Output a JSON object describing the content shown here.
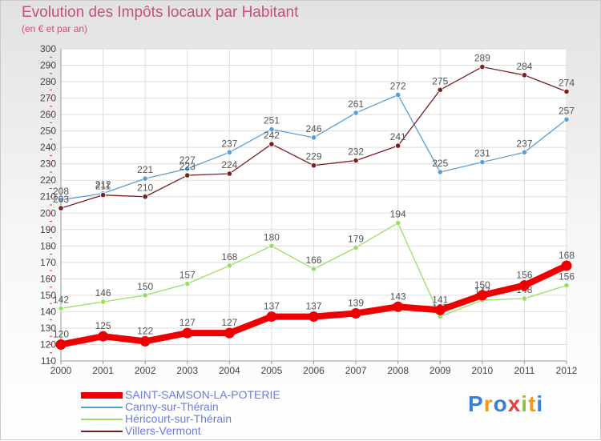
{
  "title": "Evolution des Impôts locaux par Habitant",
  "subtitle": "(en € et par an)",
  "logo_text": "Proxiti",
  "chart_data": {
    "type": "line",
    "title": "Evolution des Impôts locaux par Habitant",
    "subtitle": "(en € et par an)",
    "x": [
      2000,
      2001,
      2002,
      2003,
      2004,
      2005,
      2006,
      2007,
      2008,
      2009,
      2010,
      2011,
      2012
    ],
    "ylim": [
      110,
      300
    ],
    "yticks": [
      110,
      120,
      130,
      140,
      150,
      160,
      170,
      180,
      190,
      200,
      210,
      220,
      230,
      240,
      250,
      260,
      270,
      280,
      290,
      300
    ],
    "grid": true,
    "legend_position": "bottom-left",
    "series": [
      {
        "name": "SAINT-SAMSON-LA-POTERIE",
        "color": "#ee0000",
        "highlight": true,
        "values": [
          120,
          125,
          122,
          127,
          127,
          137,
          137,
          139,
          143,
          141,
          150,
          156,
          168
        ]
      },
      {
        "name": "Canny-sur-Thérain",
        "color": "#5a9fd4",
        "values": [
          208,
          212,
          221,
          227,
          237,
          251,
          246,
          261,
          272,
          225,
          231,
          237,
          257
        ]
      },
      {
        "name": "Héricourt-sur-Thérain",
        "color": "#99dd66",
        "values": [
          142,
          146,
          150,
          157,
          168,
          180,
          166,
          179,
          194,
          137,
          147,
          148,
          156
        ]
      },
      {
        "name": "Villers-Vermont",
        "color": "#7a2020",
        "values": [
          203,
          211,
          210,
          223,
          224,
          242,
          229,
          232,
          241,
          275,
          289,
          284,
          274
        ]
      }
    ]
  }
}
